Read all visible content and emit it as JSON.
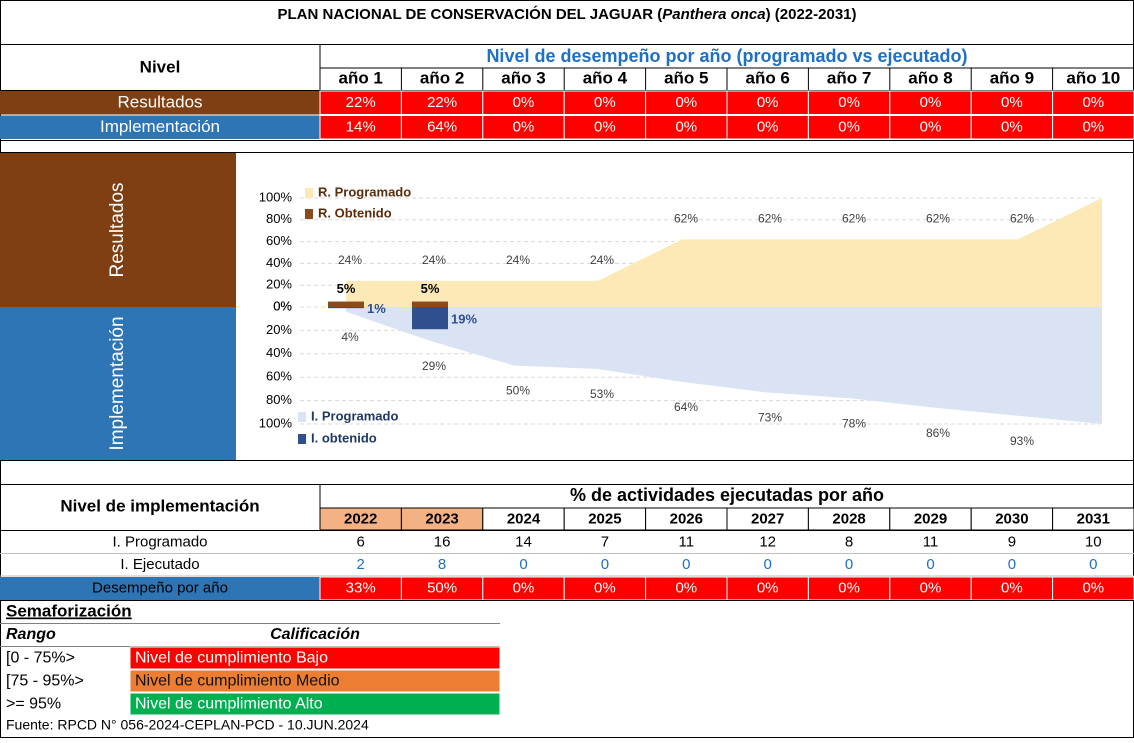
{
  "title": {
    "prefix": "PLAN NACIONAL DE CONSERVACIÓN DEL JAGUAR (",
    "species": "Panthera onca",
    "suffix": ") (2022-2031)"
  },
  "top_table": {
    "level_header": "Nivel",
    "group_header": "Nivel de desempeño por año (programado vs ejecutado)",
    "columns": [
      "año 1",
      "año 2",
      "año 3",
      "año 4",
      "año 5",
      "año 6",
      "año 7",
      "año 8",
      "año 9",
      "año 10"
    ],
    "rows": [
      {
        "label": "Resultados",
        "cells": [
          "22%",
          "22%",
          "0%",
          "0%",
          "0%",
          "0%",
          "0%",
          "0%",
          "0%",
          "0%"
        ]
      },
      {
        "label": "Implementación",
        "cells": [
          "14%",
          "64%",
          "0%",
          "0%",
          "0%",
          "0%",
          "0%",
          "0%",
          "0%",
          "0%"
        ]
      }
    ]
  },
  "chart_data": {
    "type": "area",
    "panels": [
      {
        "label": "Resultados",
        "ylim": [
          0,
          100
        ],
        "yticks": [
          {
            "value": 0,
            "label": "0%"
          },
          {
            "value": 20,
            "label": "20%"
          },
          {
            "value": 40,
            "label": "40%"
          },
          {
            "value": 60,
            "label": "60%"
          },
          {
            "value": 80,
            "label": "80%"
          },
          {
            "value": 100,
            "label": "100%"
          }
        ],
        "series": [
          {
            "name": "R. Programado",
            "type": "area",
            "color": "#fde9b5",
            "values": [
              24,
              24,
              24,
              24,
              62,
              62,
              62,
              62,
              62,
              100
            ],
            "value_labels": [
              "24%",
              "24%",
              "24%",
              "24%",
              "62%",
              "62%",
              "62%",
              "62%",
              "62%",
              null
            ]
          },
          {
            "name": "R. Obtenido",
            "type": "bar",
            "color": "#8b4a1c",
            "values": [
              5,
              5
            ],
            "value_labels": [
              "5%",
              "5%"
            ]
          }
        ]
      },
      {
        "label": "Implementación",
        "ylim": [
          0,
          100
        ],
        "inverted": true,
        "yticks": [
          {
            "value": 0,
            "label": "0%"
          },
          {
            "value": 20,
            "label": "20%"
          },
          {
            "value": 40,
            "label": "40%"
          },
          {
            "value": 60,
            "label": "60%"
          },
          {
            "value": 80,
            "label": "80%"
          },
          {
            "value": 100,
            "label": "100%"
          }
        ],
        "series": [
          {
            "name": "I. Programado",
            "type": "area",
            "color": "#dae3f3",
            "values": [
              4,
              29,
              50,
              53,
              64,
              73,
              78,
              86,
              93,
              100
            ],
            "value_labels": [
              "4%",
              "29%",
              "50%",
              "53%",
              "64%",
              "73%",
              "78%",
              "86%",
              "93%",
              null
            ]
          },
          {
            "name": "I. obtenido",
            "type": "bar",
            "color": "#2f4f8f",
            "values": [
              1,
              19
            ],
            "value_labels": [
              "1%",
              "19%"
            ]
          }
        ]
      }
    ]
  },
  "bottom_table": {
    "level_header": "Nivel de implementación",
    "group_header": "% de actividades ejecutadas por año",
    "columns": [
      "2022",
      "2023",
      "2024",
      "2025",
      "2026",
      "2027",
      "2028",
      "2029",
      "2030",
      "2031"
    ],
    "rows": [
      {
        "label": "I. Programado",
        "cells": [
          6,
          16,
          14,
          7,
          11,
          12,
          8,
          11,
          9,
          10
        ]
      },
      {
        "label": "I. Ejecutado",
        "cells": [
          2,
          8,
          0,
          0,
          0,
          0,
          0,
          0,
          0,
          0
        ]
      },
      {
        "label": "Desempeño por año",
        "cells": [
          "33%",
          "50%",
          "0%",
          "0%",
          "0%",
          "0%",
          "0%",
          "0%",
          "0%",
          "0%"
        ]
      }
    ]
  },
  "legend_table": {
    "title": "Semaforización",
    "headers": [
      "Rango",
      "Calificación"
    ],
    "rows": [
      [
        "[0 - 75%>",
        "Nivel de cumplimiento Bajo"
      ],
      [
        "[75 - 95%>",
        "Nivel de cumplimiento Medio"
      ],
      [
        ">= 95%",
        "Nivel de cumplimiento Alto"
      ]
    ]
  },
  "source": "Fuente: RPCD N° 056-2024-CEPLAN-PCD - 10.JUN.2024"
}
